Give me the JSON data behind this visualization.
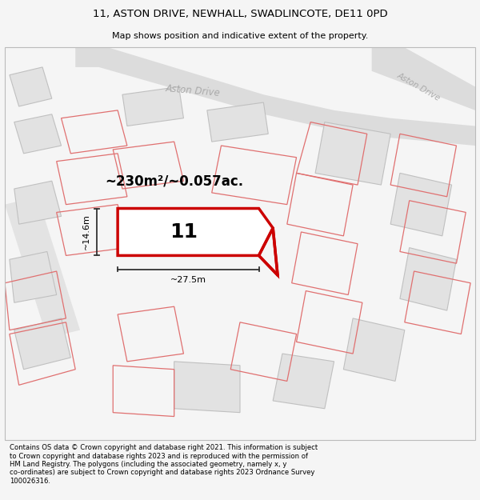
{
  "title": "11, ASTON DRIVE, NEWHALL, SWADLINCOTE, DE11 0PD",
  "subtitle": "Map shows position and indicative extent of the property.",
  "footer": "Contains OS data © Crown copyright and database right 2021. This information is subject\nto Crown copyright and database rights 2023 and is reproduced with the permission of\nHM Land Registry. The polygons (including the associated geometry, namely x, y\nco-ordinates) are subject to Crown copyright and database rights 2023 Ordnance Survey\n100026316.",
  "background_color": "#f5f5f5",
  "map_background": "#ffffff",
  "plot_color": "#ffffff",
  "plot_border_color": "#cc0000",
  "road_color": "#d8d8d8",
  "road_label_color": "#aaaaaa",
  "building_fill": "#e2e2e2",
  "building_line_color": "#c0c0c0",
  "other_plot_line_color": "#e07070",
  "plot_label": "11",
  "area_label": "~230m²/~0.057ac.",
  "width_label": "~27.5m",
  "height_label": "~14.6m",
  "figsize": [
    6.0,
    6.25
  ],
  "dpi": 100
}
